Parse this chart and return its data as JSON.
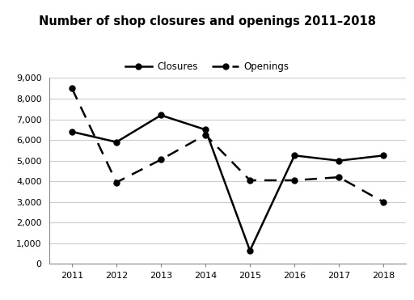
{
  "title": "Number of shop closures and openings 2011–2018",
  "years": [
    2011,
    2012,
    2013,
    2014,
    2015,
    2016,
    2017,
    2018
  ],
  "closures": [
    6400,
    5900,
    7200,
    6500,
    650,
    5250,
    5000,
    5250
  ],
  "openings": [
    8500,
    3950,
    5050,
    6250,
    4050,
    4050,
    4200,
    3000
  ],
  "ylim": [
    0,
    9000
  ],
  "yticks": [
    0,
    1000,
    2000,
    3000,
    4000,
    5000,
    6000,
    7000,
    8000,
    9000
  ],
  "ytick_labels": [
    "0",
    "1,000",
    "2,000",
    "3,000",
    "4,000",
    "5,000",
    "6,000",
    "7,000",
    "8,000",
    "9,000"
  ],
  "closures_label": "Closures",
  "openings_label": "Openings",
  "line_color": "black",
  "bg_color": "#ffffff",
  "grid_color": "#cccccc"
}
